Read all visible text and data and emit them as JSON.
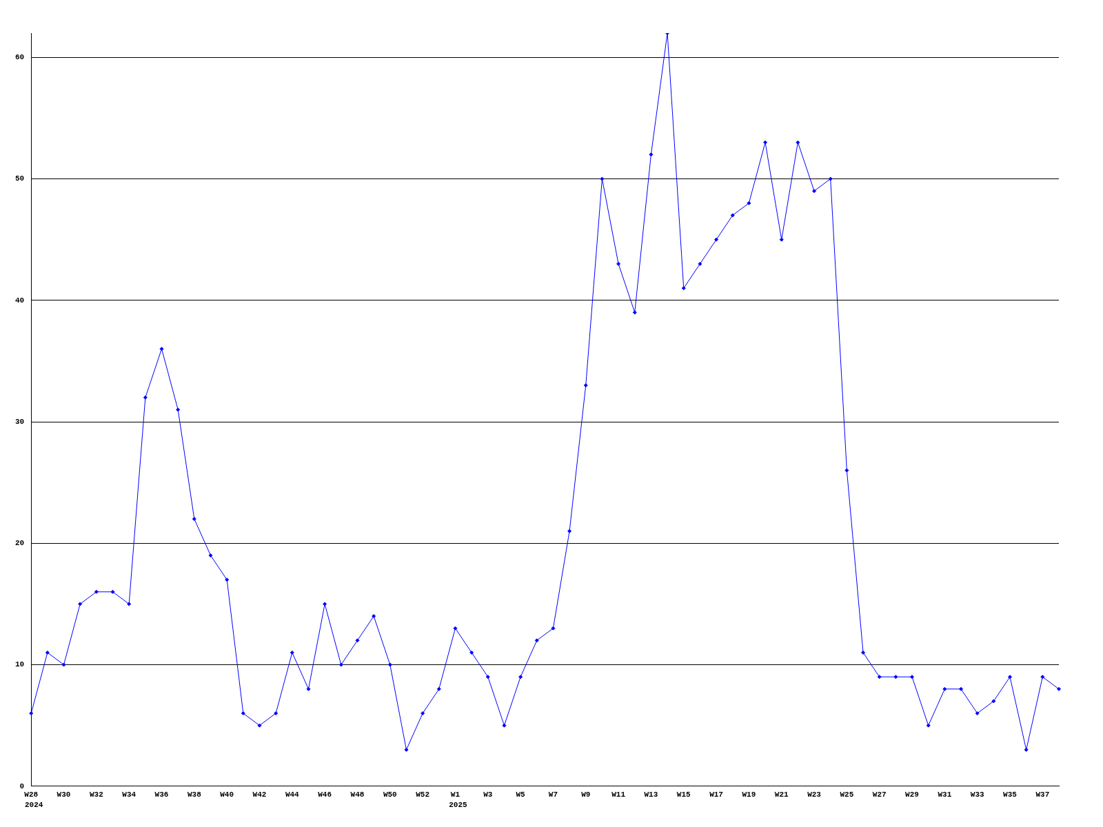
{
  "chart_data": {
    "type": "line",
    "categories": [
      "W28",
      null,
      "W30",
      null,
      "W32",
      null,
      "W34",
      null,
      "W36",
      null,
      "W38",
      null,
      "W40",
      null,
      "W42",
      null,
      "W44",
      null,
      "W46",
      null,
      "W48",
      null,
      "W50",
      null,
      "W52",
      null,
      "W1",
      null,
      "W3",
      null,
      "W5",
      null,
      "W7",
      null,
      "W9",
      null,
      "W11",
      null,
      "W13",
      null,
      "W15",
      null,
      "W17",
      null,
      "W19",
      null,
      "W21",
      null,
      "W23",
      null,
      "W25",
      null,
      "W27",
      null,
      "W29",
      null,
      "W31",
      null,
      "W33",
      null,
      "W35",
      null,
      "W37",
      null
    ],
    "series": [
      {
        "color": "#0000ff",
        "values": [
          6,
          11,
          10,
          15,
          16,
          16,
          15,
          32,
          36,
          31,
          22,
          19,
          17,
          6,
          5,
          6,
          11,
          8,
          15,
          10,
          12,
          14,
          10,
          3,
          6,
          8,
          13,
          11,
          9,
          5,
          9,
          12,
          13,
          21,
          33,
          50,
          43,
          39,
          52,
          62,
          41,
          43,
          45,
          47,
          48,
          53,
          45,
          53,
          49,
          50,
          26,
          11,
          9,
          9,
          9,
          5,
          8,
          8,
          6,
          7,
          9,
          3,
          9,
          8
        ]
      }
    ],
    "ylim": [
      0,
      62
    ],
    "yticks": [
      0,
      10,
      20,
      30,
      40,
      50,
      60
    ],
    "grid": "y",
    "legend": false,
    "marker": "diamond",
    "line_style": "solid",
    "annotations": [
      "2024",
      "2025"
    ]
  }
}
